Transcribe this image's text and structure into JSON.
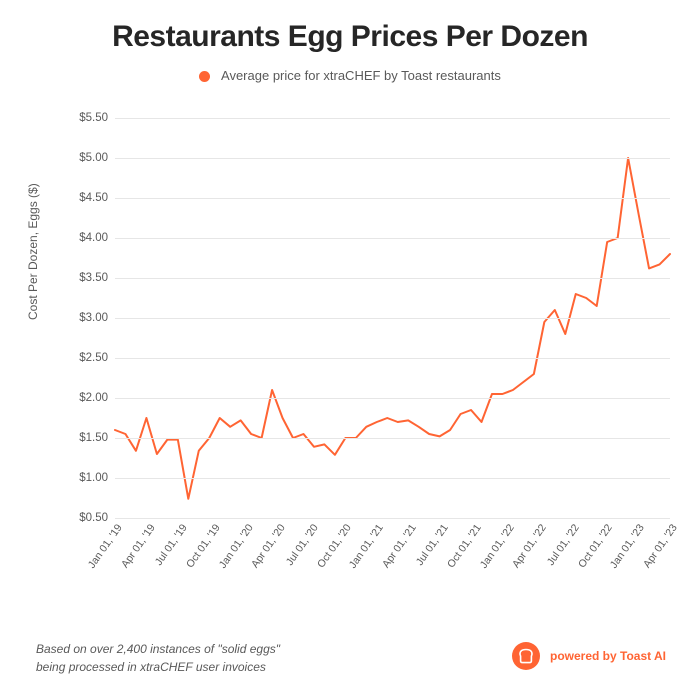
{
  "title": "Restaurants Egg Prices Per Dozen",
  "legend": {
    "dot_color": "#ff6433",
    "label": "Average price for xtraCHEF by Toast restaurants"
  },
  "chart": {
    "type": "line",
    "line_color": "#ff6433",
    "line_width": 2,
    "grid_color": "#e6e6e6",
    "background_color": "#ffffff",
    "y_axis": {
      "title": "Cost Per Dozen, Eggs ($)",
      "min": 0.5,
      "max": 5.5,
      "ticks": [
        0.5,
        1.0,
        1.5,
        2.0,
        2.5,
        3.0,
        3.5,
        4.0,
        4.5,
        5.0,
        5.5
      ],
      "tick_labels": [
        "$0.50",
        "$1.00",
        "$1.50",
        "$2.00",
        "$2.50",
        "$3.00",
        "$3.50",
        "$4.00",
        "$4.50",
        "$5.00",
        "$5.50"
      ],
      "label_fontsize": 11.5,
      "label_color": "#595959"
    },
    "x_axis": {
      "tick_labels": [
        "Jan 01, '19",
        "Apr 01, '19",
        "Jul 01, '19",
        "Oct 01, '19",
        "Jan 01, '20",
        "Apr 01, '20",
        "Jul 01, '20",
        "Oct 01, '20",
        "Jan 01, '21",
        "Apr 01, '21",
        "Jul 01, '21",
        "Oct 01, '21",
        "Jan 01, '22",
        "Apr 01, '22",
        "Jul 01, '22",
        "Oct 01, '22",
        "Jan 01, '23",
        "Apr 01, '23"
      ],
      "tick_label_rotation": -55,
      "label_fontsize": 10.5,
      "label_color": "#595959"
    },
    "series": {
      "name": "avg_price",
      "values": [
        1.6,
        1.55,
        1.34,
        1.75,
        1.3,
        1.48,
        1.48,
        0.74,
        1.34,
        1.5,
        1.75,
        1.64,
        1.72,
        1.55,
        1.5,
        2.1,
        1.75,
        1.5,
        1.55,
        1.39,
        1.42,
        1.29,
        1.5,
        1.5,
        1.64,
        1.7,
        1.75,
        1.7,
        1.72,
        1.64,
        1.55,
        1.52,
        1.6,
        1.8,
        1.85,
        1.7,
        2.05,
        2.05,
        2.1,
        2.2,
        2.3,
        2.95,
        3.1,
        2.8,
        3.3,
        3.25,
        3.15,
        3.95,
        4.0,
        5.0,
        4.3,
        3.62,
        3.67,
        3.8
      ]
    }
  },
  "footnote": {
    "line1": "Based on over 2,400 instances of \"solid eggs\"",
    "line2": "being processed in xtraCHEF user invoices"
  },
  "branding": {
    "icon_bg": "#ff6433",
    "icon_fg": "#ffffff",
    "text": "powered by Toast AI",
    "text_color": "#ff6433"
  }
}
